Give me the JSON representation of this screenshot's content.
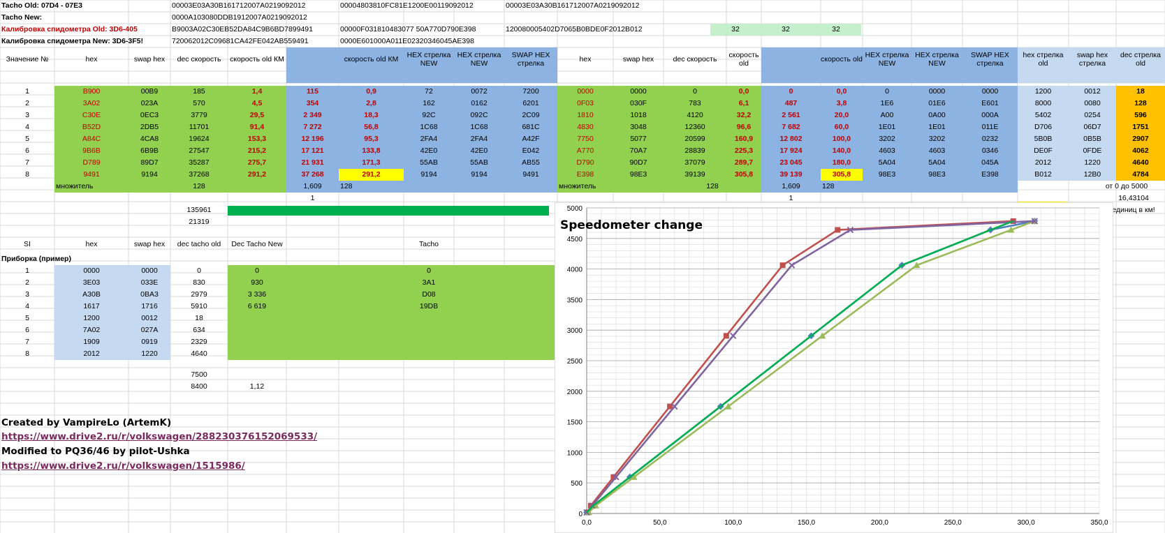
{
  "header": {
    "labels": [
      "Tacho Old: 07D4 - 07E3",
      "Tacho New:",
      "Калибровка спидометра Old: 3D6-405",
      "Калибровка спидометра New: 3D6-3F5!"
    ],
    "row0": [
      "00003E03A30B161712007A0219092012",
      "00004803810FC81E1200E00119092012",
      "00003E03A30B161712007A0219092012"
    ],
    "row1": [
      "0000A103080DDB1912007A0219092012"
    ],
    "row2": [
      "B9003A02C30EB52DA84C9B6BD7899491",
      "00000F031810483077 50A770D790E398",
      "120080005402D7065B0BDE0F2012B012"
    ],
    "row3": [
      "720062012C09681CA42FE042AB559491",
      "0000E601000A011E02320346045AE398"
    ],
    "green_vals": [
      "32",
      "32",
      "32"
    ]
  },
  "columns": [
    "Значение №",
    "hex",
    "swap hex",
    "dec скорость",
    "скорость old КМ",
    "",
    "скорость old КМ",
    "HEX стрелка NEW",
    "HEX стрелка NEW",
    "SWAP HEX стрелка",
    "hex",
    "swap hex",
    "dec скорость",
    "скорость old",
    "",
    "скорость old",
    "HEX стрелка NEW",
    "HEX стрелка NEW",
    "SWAP HEX стрелка",
    "hex стрелка old",
    "swap hex стрелка",
    "dec стрелка old"
  ],
  "rows": [
    [
      "1",
      "B900",
      "00B9",
      "185",
      "1,4",
      "115",
      "0,9",
      "72",
      "0072",
      "7200",
      "0000",
      "0000",
      "0",
      "0,0",
      "0",
      "0,0",
      "0",
      "0000",
      "0000",
      "1200",
      "0012",
      "18"
    ],
    [
      "2",
      "3A02",
      "023A",
      "570",
      "4,5",
      "354",
      "2,8",
      "162",
      "0162",
      "6201",
      "0F03",
      "030F",
      "783",
      "6,1",
      "487",
      "3,8",
      "1E6",
      "01E6",
      "E601",
      "8000",
      "0080",
      "128"
    ],
    [
      "3",
      "C30E",
      "0EC3",
      "3779",
      "29,5",
      "2 349",
      "18,3",
      "92C",
      "092C",
      "2C09",
      "1810",
      "1018",
      "4120",
      "32,2",
      "2 561",
      "20,0",
      "A00",
      "0A00",
      "000A",
      "5402",
      "0254",
      "596"
    ],
    [
      "4",
      "B52D",
      "2DB5",
      "11701",
      "91,4",
      "7 272",
      "56,8",
      "1C68",
      "1C68",
      "681C",
      "4830",
      "3048",
      "12360",
      "96,6",
      "7 682",
      "60,0",
      "1E01",
      "1E01",
      "011E",
      "D706",
      "06D7",
      "1751"
    ],
    [
      "5",
      "A84C",
      "4CA8",
      "19624",
      "153,3",
      "12 196",
      "95,3",
      "2FA4",
      "2FA4",
      "A42F",
      "7750",
      "5077",
      "20599",
      "160,9",
      "12 802",
      "100,0",
      "3202",
      "3202",
      "0232",
      "5B0B",
      "0B5B",
      "2907"
    ],
    [
      "6",
      "9B6B",
      "6B9B",
      "27547",
      "215,2",
      "17 121",
      "133,8",
      "42E0",
      "42E0",
      "E042",
      "A770",
      "70A7",
      "28839",
      "225,3",
      "17 924",
      "140,0",
      "4603",
      "4603",
      "0346",
      "DE0F",
      "0FDE",
      "4062"
    ],
    [
      "7",
      "D789",
      "89D7",
      "35287",
      "275,7",
      "21 931",
      "171,3",
      "55AB",
      "55AB",
      "AB55",
      "D790",
      "90D7",
      "37079",
      "289,7",
      "23 045",
      "180,0",
      "5A04",
      "5A04",
      "045A",
      "2012",
      "1220",
      "4640"
    ],
    [
      "8",
      "9491",
      "9194",
      "37268",
      "291,2",
      "37 268",
      "291,2",
      "9194",
      "9194",
      "9491",
      "E398",
      "98E3",
      "39139",
      "305,8",
      "39 139",
      "305,8",
      "98E3",
      "98E3",
      "E398",
      "B012",
      "12B0",
      "4784"
    ]
  ],
  "mult_row": {
    "label": "множитель",
    "val": "128",
    "mid": "1,609",
    "val2": "128",
    "label2": "множитель",
    "val3": "128",
    "mid2": "1,609",
    "val4": "128",
    "right": "от 0 до 5000"
  },
  "extra": {
    "one_a": "1",
    "one_b": "1",
    "right2": "16,43104",
    "right3": "единиц в км!",
    "n1": "135961",
    "n2": "21319"
  },
  "tacho_columns": [
    "SI",
    "hex",
    "swap hex",
    "dec tacho old",
    "Dec Tacho New",
    "Tacho"
  ],
  "tacho_label": "Приборка (пример)",
  "tacho_rows": [
    [
      "1",
      "0000",
      "0000",
      "0",
      "0",
      "0"
    ],
    [
      "2",
      "3E03",
      "033E",
      "830",
      "930",
      "3A1"
    ],
    [
      "3",
      "A30B",
      "0BA3",
      "2979",
      "3 336",
      "D08"
    ],
    [
      "4",
      "1617",
      "1716",
      "5910",
      "6 619",
      "19DB"
    ],
    [
      "5",
      "1200",
      "0012",
      "18",
      "",
      ""
    ],
    [
      "6",
      "7A02",
      "027A",
      "634",
      "",
      ""
    ],
    [
      "7",
      "1909",
      "0919",
      "2329",
      "",
      ""
    ],
    [
      "8",
      "2012",
      "1220",
      "4640",
      "",
      ""
    ]
  ],
  "tacho_extra": {
    "a": "7500",
    "b": "8400",
    "c": "1,12"
  },
  "credits": {
    "line1": "Created by VampireLo (ArtemK)",
    "link1": "https://www.drive2.ru/r/volkswagen/288230376152069533/",
    "line2": "Modified to PQ36/46 by pilot-Ushka",
    "link2": "https://www.drive2.ru/r/volkswagen/1515986/"
  },
  "chart_data": {
    "type": "line",
    "title": "Speedometer change",
    "xlim": [
      0,
      350
    ],
    "ylim": [
      0,
      5000
    ],
    "xticks": [
      "0,0",
      "50,0",
      "100,0",
      "150,0",
      "200,0",
      "250,0",
      "300,0",
      "350,0"
    ],
    "yticks": [
      "0",
      "500",
      "1000",
      "1500",
      "2000",
      "2500",
      "3000",
      "3500",
      "4000",
      "4500",
      "5000"
    ],
    "series": [
      {
        "color": "#4f81bd",
        "marker": "diamond",
        "x": [
          0,
          4.5,
          29.5,
          91.4,
          153.3,
          215.2,
          275.7,
          305.8
        ],
        "y": [
          18,
          128,
          596,
          1751,
          2907,
          4062,
          4640,
          4784
        ]
      },
      {
        "color": "#c0504d",
        "marker": "square",
        "x": [
          0.9,
          2.8,
          18.3,
          56.8,
          95.3,
          133.8,
          171.3,
          291.2
        ],
        "y": [
          18,
          128,
          596,
          1751,
          2907,
          4062,
          4640,
          4784
        ]
      },
      {
        "color": "#9bbb59",
        "marker": "triangle",
        "x": [
          1.4,
          6.1,
          32.2,
          96.6,
          160.9,
          225.3,
          289.7,
          305.8
        ],
        "y": [
          18,
          128,
          596,
          1751,
          2907,
          4062,
          4640,
          4784
        ]
      },
      {
        "color": "#8064a2",
        "marker": "x",
        "x": [
          0,
          3.8,
          20.0,
          60.0,
          100.0,
          140.0,
          180.0,
          305.8
        ],
        "y": [
          18,
          128,
          596,
          1751,
          2907,
          4062,
          4640,
          4784
        ]
      },
      {
        "color": "#00b050",
        "marker": "none",
        "x": [
          0,
          4.5,
          29.5,
          91.4,
          153.3,
          215.2,
          275.7,
          291.2
        ],
        "y": [
          18,
          128,
          596,
          1751,
          2907,
          4062,
          4640,
          4784
        ]
      }
    ]
  }
}
